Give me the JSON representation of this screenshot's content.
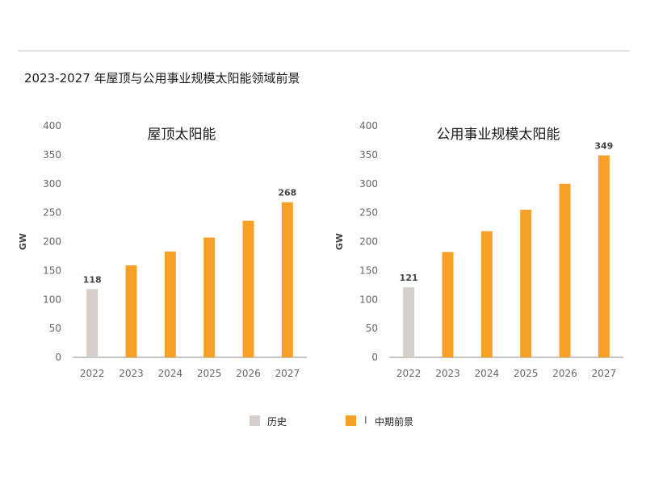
{
  "page_title": "2023-2027 年屋顶与公用事业规模太阳能领域前景",
  "colors": {
    "history": "#d7cfcb",
    "forecast": "#f7a027",
    "axis": "#8a8a8a",
    "tick_text": "#666666"
  },
  "legend": {
    "history_label": "历史",
    "separator": "I",
    "forecast_label": "中期前景"
  },
  "chart_data": [
    {
      "type": "bar",
      "title": "屋顶太阳能",
      "ylabel": "GW",
      "ylim": [
        0,
        400
      ],
      "yticks": [
        0,
        50,
        100,
        150,
        200,
        250,
        300,
        350,
        400
      ],
      "categories": [
        "2022",
        "2023",
        "2024",
        "2025",
        "2026",
        "2027"
      ],
      "values": [
        118,
        159,
        183,
        207,
        236,
        268
      ],
      "kinds": [
        "history",
        "forecast",
        "forecast",
        "forecast",
        "forecast",
        "forecast"
      ],
      "data_labels": [
        "118",
        "",
        "",
        "",
        "",
        "268"
      ]
    },
    {
      "type": "bar",
      "title": "公用事业规模太阳能",
      "ylabel": "GW",
      "ylim": [
        0,
        400
      ],
      "yticks": [
        0,
        50,
        100,
        150,
        200,
        250,
        300,
        350,
        400
      ],
      "categories": [
        "2022",
        "2023",
        "2024",
        "2025",
        "2026",
        "2027"
      ],
      "values": [
        121,
        182,
        218,
        255,
        300,
        349
      ],
      "kinds": [
        "history",
        "forecast",
        "forecast",
        "forecast",
        "forecast",
        "forecast"
      ],
      "data_labels": [
        "121",
        "",
        "",
        "",
        "",
        "349"
      ]
    }
  ]
}
